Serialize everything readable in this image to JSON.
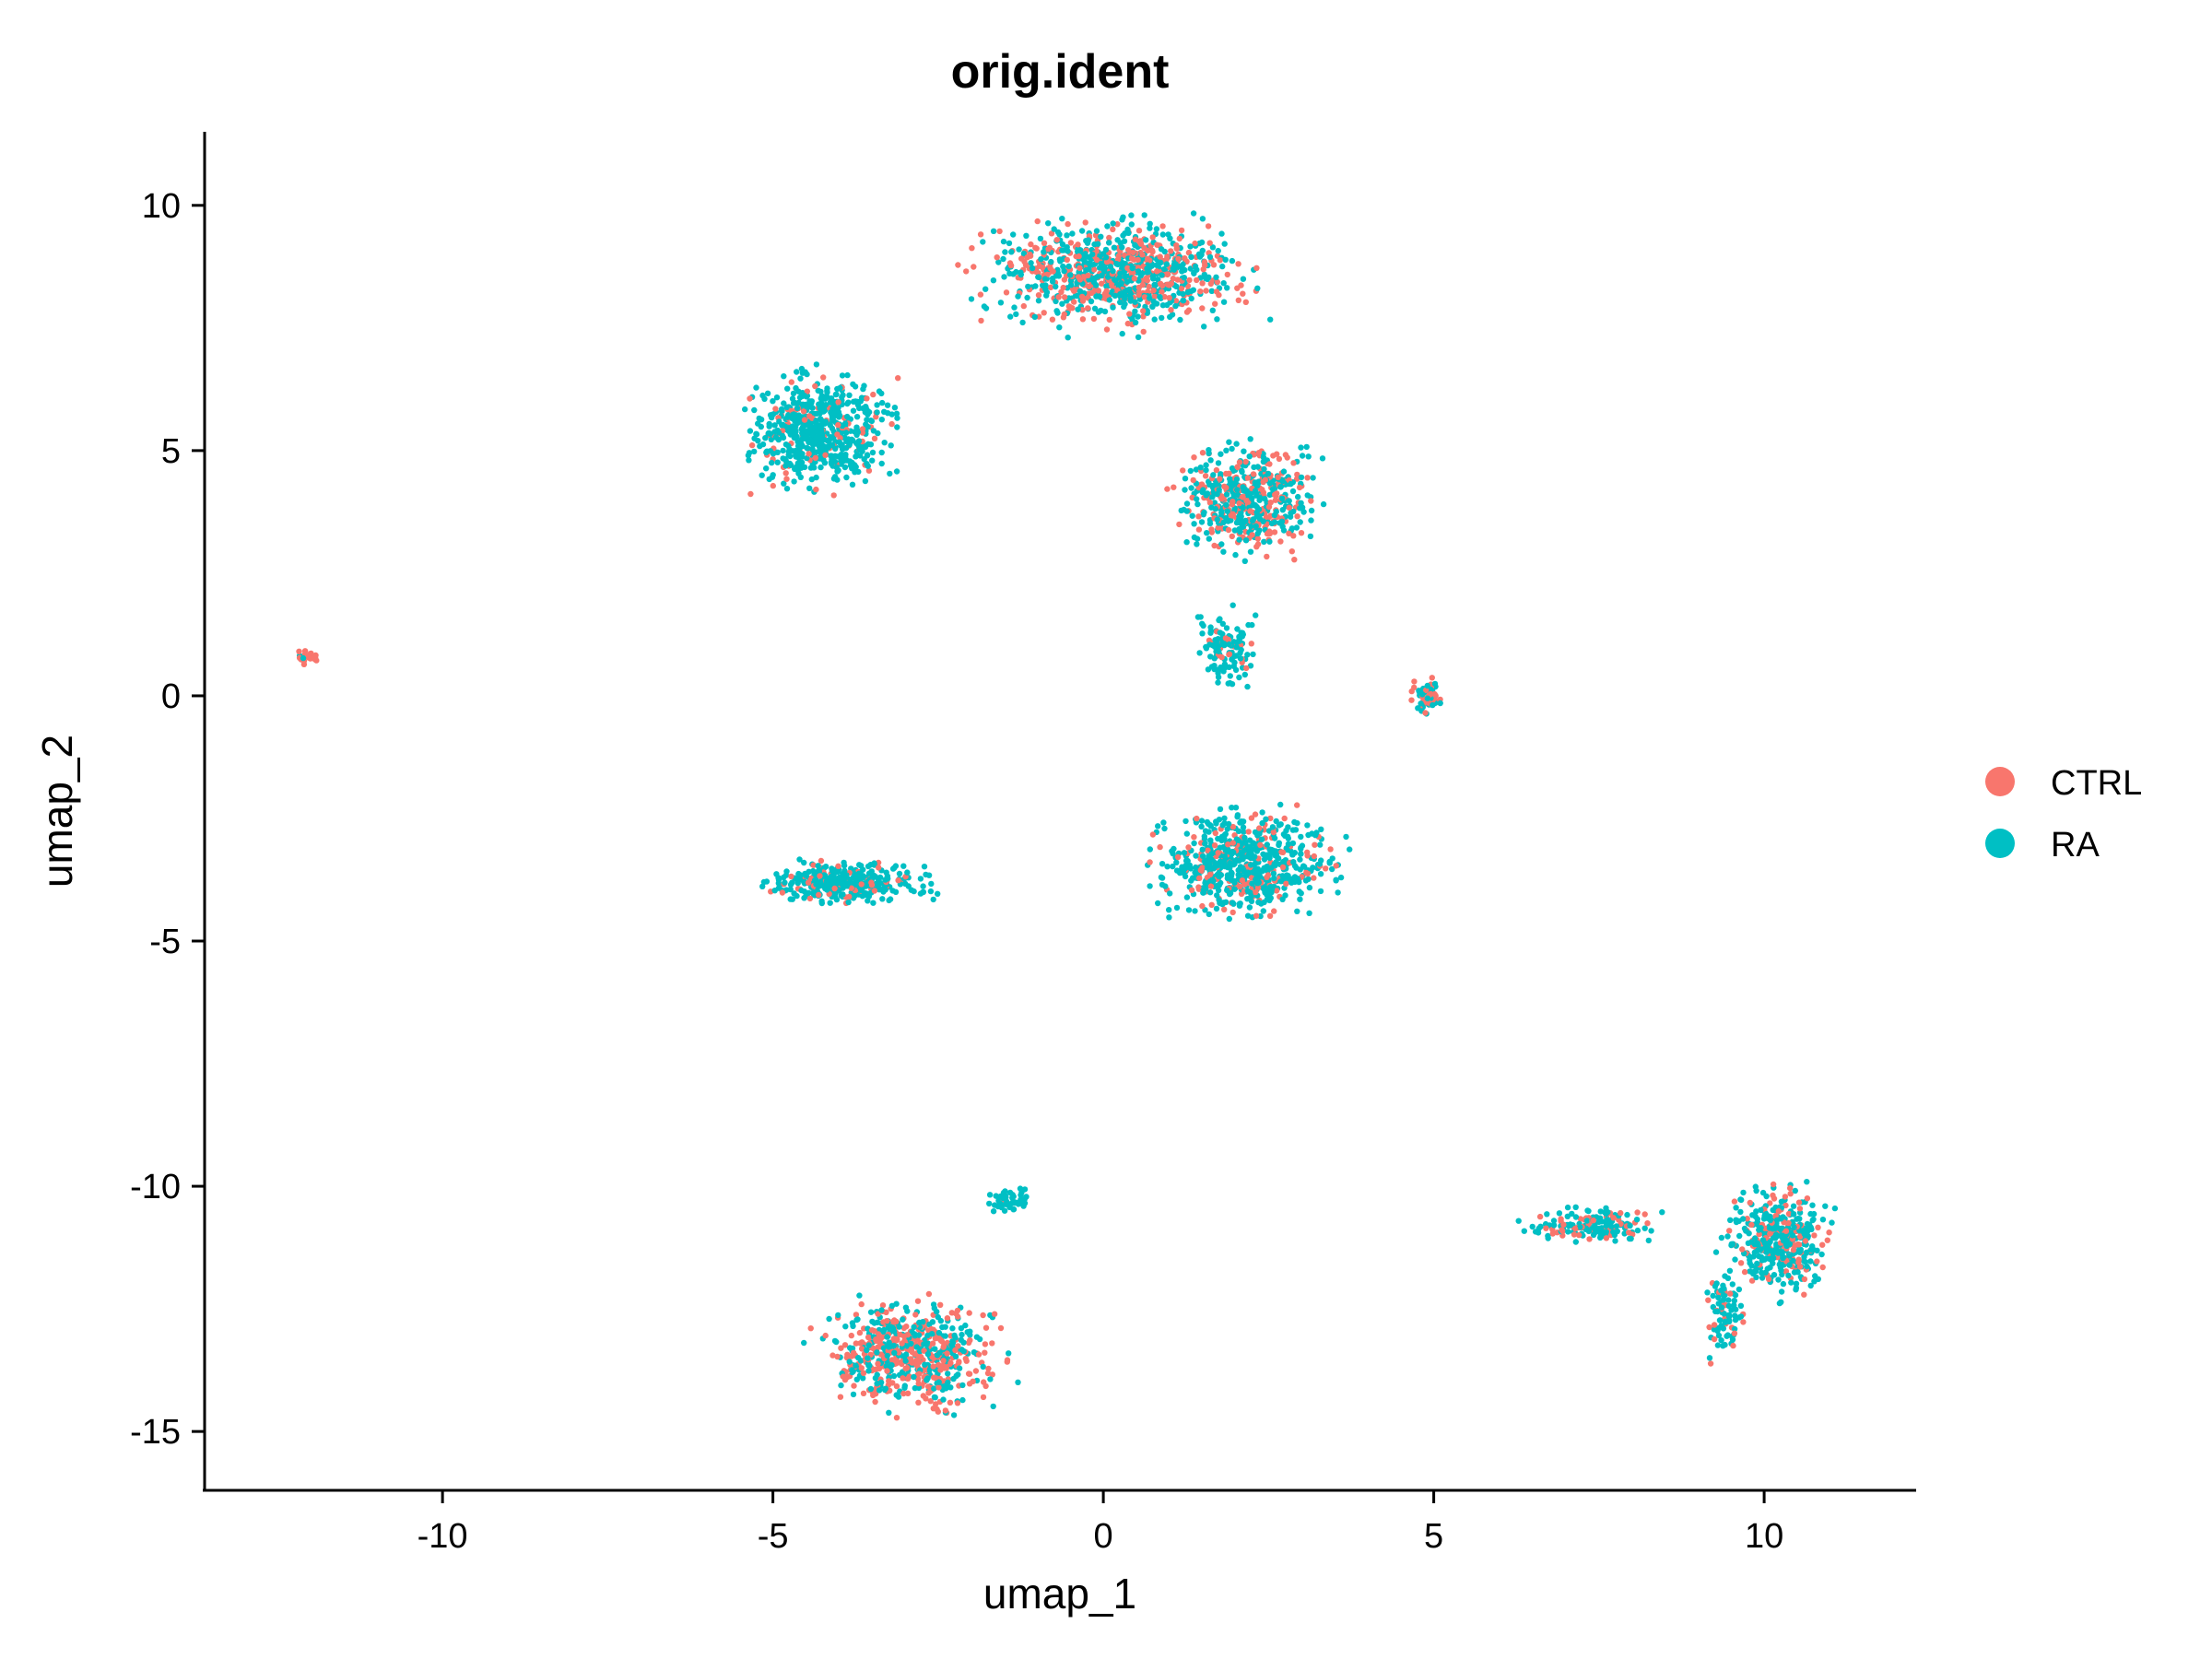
{
  "chart_data": {
    "type": "scatter",
    "title": "orig.ident",
    "xlabel": "umap_1",
    "ylabel": "umap_2",
    "xlim": [
      -13.6,
      12.3
    ],
    "ylim": [
      -16.2,
      11.5
    ],
    "x_ticks": [
      {
        "value": -10,
        "label": "-10"
      },
      {
        "value": -5,
        "label": "-5"
      },
      {
        "value": 0,
        "label": "0"
      },
      {
        "value": 5,
        "label": "5"
      },
      {
        "value": 10,
        "label": "10"
      }
    ],
    "y_ticks": [
      {
        "value": 10,
        "label": "10"
      },
      {
        "value": 5,
        "label": "5"
      },
      {
        "value": 0,
        "label": "0"
      },
      {
        "value": -5,
        "label": "-5"
      },
      {
        "value": -10,
        "label": "-10"
      },
      {
        "value": -15,
        "label": "-15"
      }
    ],
    "grid": false,
    "legend_position": "right",
    "series": [
      {
        "name": "CTRL",
        "color": "#F8766D"
      },
      {
        "name": "RA",
        "color": "#00BFC4"
      }
    ],
    "clusters": [
      {
        "center": [
          0.2,
          8.6
        ],
        "spread": [
          1.45,
          0.8
        ],
        "ctrl_fraction": 0.4
      },
      {
        "center": [
          -4.3,
          5.4
        ],
        "spread": [
          0.8,
          0.85
        ],
        "ctrl_fraction": 0.15
      },
      {
        "center": [
          2.2,
          4.0
        ],
        "spread": [
          0.75,
          0.8
        ],
        "ctrl_fraction": 0.35
      },
      {
        "center": [
          4.9,
          0.0
        ],
        "spread": [
          0.2,
          0.25
        ],
        "ctrl_fraction": 0.5
      },
      {
        "center": [
          1.9,
          1.0
        ],
        "spread": [
          0.35,
          0.6
        ],
        "ctrl_fraction": 0.15
      },
      {
        "center": [
          -3.9,
          -3.8
        ],
        "spread": [
          0.9,
          0.3
        ],
        "ctrl_fraction": 0.2
      },
      {
        "center": [
          2.1,
          -3.4
        ],
        "spread": [
          1.0,
          0.75
        ],
        "ctrl_fraction": 0.2
      },
      {
        "center": [
          -2.9,
          -13.4
        ],
        "spread": [
          0.95,
          0.8
        ],
        "ctrl_fraction": 0.55
      },
      {
        "center": [
          -1.4,
          -10.3
        ],
        "spread": [
          0.3,
          0.2
        ],
        "ctrl_fraction": 0.05
      },
      {
        "center": [
          -12.0,
          0.8
        ],
        "spread": [
          0.15,
          0.12
        ],
        "ctrl_fraction": 0.8
      },
      {
        "center": [
          10.2,
          -11.1
        ],
        "spread": [
          0.55,
          0.8
        ],
        "ctrl_fraction": 0.3
      },
      {
        "center": [
          7.4,
          -10.8
        ],
        "spread": [
          0.7,
          0.25
        ],
        "ctrl_fraction": 0.3
      },
      {
        "center": [
          9.4,
          -12.6
        ],
        "spread": [
          0.2,
          0.6
        ],
        "ctrl_fraction": 0.3
      }
    ]
  }
}
